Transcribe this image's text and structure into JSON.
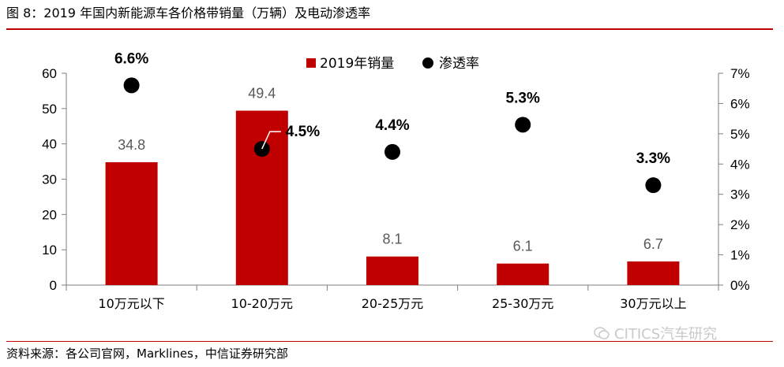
{
  "figure": {
    "title": "图 8：2019 年国内新能源车各价格带销量（万辆）及电动渗透率",
    "source": "资料来源：各公司官网，Marklines，中信证券研究部",
    "watermark": "CITICS汽车研究"
  },
  "colors": {
    "bar": "#c00000",
    "dot": "#000000",
    "rule": "#c00000"
  },
  "chart_data": {
    "type": "bar",
    "categories": [
      "10万元以下",
      "10-20万元",
      "20-25万元",
      "25-30万元",
      "30万元以上"
    ],
    "series": [
      {
        "name": "2019年销量",
        "type": "bar",
        "axis": "left",
        "values": [
          34.8,
          49.4,
          8.1,
          6.1,
          6.7
        ],
        "labels": [
          "34.8",
          "49.4",
          "8.1",
          "6.1",
          "6.7"
        ]
      },
      {
        "name": "渗透率",
        "type": "scatter",
        "axis": "right",
        "values": [
          0.066,
          0.045,
          0.044,
          0.053,
          0.033
        ],
        "labels": [
          "6.6%",
          "4.5%",
          "4.4%",
          "5.3%",
          "3.3%"
        ]
      }
    ],
    "y_left": {
      "min": 0,
      "max": 60,
      "ticks": [
        "0",
        "10",
        "20",
        "30",
        "40",
        "50",
        "60"
      ]
    },
    "y_right": {
      "min": 0,
      "max": 0.07,
      "ticks": [
        "0%",
        "1%",
        "2%",
        "3%",
        "4%",
        "5%",
        "6%",
        "7%"
      ]
    },
    "grid": false,
    "legend": "top-center"
  }
}
